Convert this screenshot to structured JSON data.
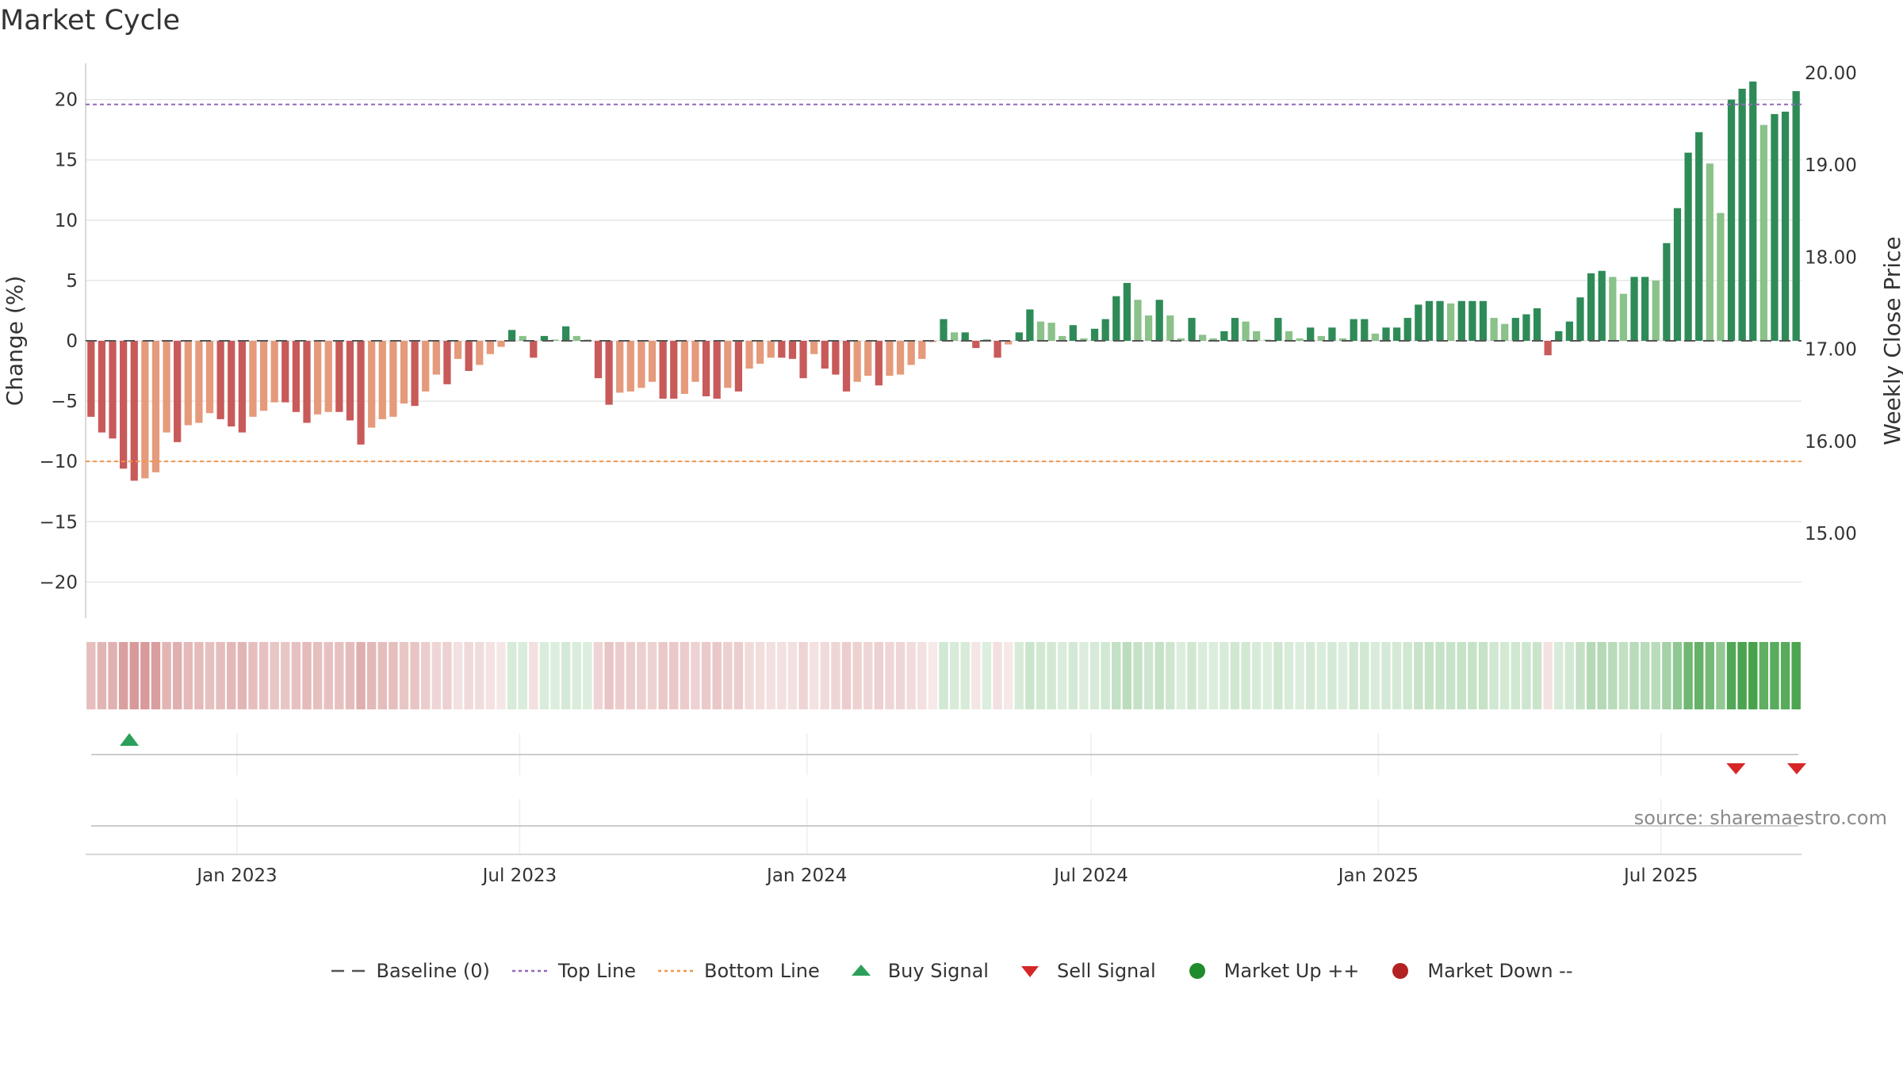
{
  "title": "Market Cycle",
  "source_text": "source: sharemaestro.com",
  "colors": {
    "dark_red": "#c85a5a",
    "light_red": "#e59a7b",
    "dark_green": "#2e8b57",
    "light_green": "#8ac28a",
    "top_line": "#9467bd",
    "bottom_line": "#f0964a",
    "baseline": "#555555",
    "buy": "#2ca05a",
    "sell": "#d62728",
    "market_up": "#1f8b2c",
    "market_down": "#b22222"
  },
  "legend": [
    {
      "label": "Baseline (0)",
      "icon": "dash-line-icon"
    },
    {
      "label": "Top Line",
      "icon": "dotted-purple-line-icon"
    },
    {
      "label": "Bottom Line",
      "icon": "dotted-orange-line-icon"
    },
    {
      "label": "Buy Signal",
      "icon": "triangle-up-icon"
    },
    {
      "label": "Sell Signal",
      "icon": "triangle-down-icon"
    },
    {
      "label": "Market Up ++",
      "icon": "green-dot-icon"
    },
    {
      "label": "Market Down --",
      "icon": "red-dot-icon"
    }
  ],
  "chart_data": {
    "type": "bar",
    "title": "Market Cycle",
    "ylabel": "Change (%)",
    "y2label": "Weekly Close Price",
    "ylim": [
      -23,
      23
    ],
    "yticks": [
      20,
      15,
      10,
      5,
      0,
      -5,
      -10,
      -15,
      -20
    ],
    "y2lim": [
      14.0,
      20.0
    ],
    "y2ticks": [
      "20.00",
      "19.00",
      "18.00",
      "17.00",
      "16.00",
      "15.00"
    ],
    "top_line": 19.6,
    "bottom_line": -10,
    "baseline": 0,
    "grid": true,
    "legend_position": "bottom",
    "x_start": "2022-09-26",
    "x_end": "2025-09-29",
    "x_ticks": [
      {
        "label": "Jan 2023",
        "date": "2023-01-01"
      },
      {
        "label": "Jul 2023",
        "date": "2023-07-01"
      },
      {
        "label": "Jan 2024",
        "date": "2024-01-01"
      },
      {
        "label": "Jul 2024",
        "date": "2024-07-01"
      },
      {
        "label": "Jan 2025",
        "date": "2025-01-01"
      },
      {
        "label": "Jul 2025",
        "date": "2025-07-01"
      }
    ],
    "weekly_change": [
      -6.3,
      -7.6,
      -8.1,
      -10.6,
      -11.6,
      -11.4,
      -10.9,
      -7.6,
      -8.4,
      -7.0,
      -6.8,
      -6.0,
      -6.5,
      -7.1,
      -7.6,
      -6.3,
      -5.8,
      -5.1,
      -5.1,
      -5.9,
      -6.8,
      -6.1,
      -5.9,
      -5.9,
      -6.6,
      -8.6,
      -7.2,
      -6.5,
      -6.3,
      -5.2,
      -5.4,
      -4.2,
      -2.8,
      -3.6,
      -1.5,
      -2.5,
      -2.0,
      -1.1,
      -0.5,
      0.9,
      0.4,
      -1.4,
      0.4,
      0.1,
      1.2,
      0.4,
      0.1,
      -3.1,
      -5.3,
      -4.3,
      -4.2,
      -3.9,
      -3.4,
      -4.8,
      -4.8,
      -4.4,
      -3.4,
      -4.6,
      -4.8,
      -3.9,
      -4.2,
      -2.3,
      -1.9,
      -1.4,
      -1.4,
      -1.5,
      -3.1,
      -1.1,
      -2.3,
      -2.8,
      -4.2,
      -3.4,
      -2.9,
      -3.7,
      -2.9,
      -2.8,
      -2.0,
      -1.5,
      -0.1,
      1.8,
      0.7,
      0.7,
      -0.6,
      0.1,
      -1.4,
      -0.3,
      0.7,
      2.6,
      1.6,
      1.5,
      0.4,
      1.3,
      0.2,
      1.0,
      1.8,
      3.7,
      4.8,
      3.4,
      2.1,
      3.4,
      2.1,
      0.2,
      1.9,
      0.5,
      0.2,
      0.8,
      1.9,
      1.6,
      0.8,
      0.1,
      1.9,
      0.8,
      0.2,
      1.1,
      0.4,
      1.1,
      0.2,
      1.8,
      1.8,
      0.6,
      1.1,
      1.1,
      1.9,
      3.0,
      3.3,
      3.3,
      3.1,
      3.3,
      3.3,
      3.3,
      1.9,
      1.4,
      1.9,
      2.2,
      2.7,
      -1.2,
      0.8,
      1.6,
      3.6,
      5.6,
      5.8,
      5.3,
      3.9,
      5.3,
      5.3,
      5.0,
      8.1,
      11.0,
      15.6,
      17.3,
      14.7,
      10.6,
      20.0,
      20.9,
      21.5,
      17.9,
      18.8,
      19.0,
      20.7
    ],
    "buy_signals": [
      "2022-10-24"
    ],
    "sell_signals": [
      "2025-08-18",
      "2025-09-29"
    ]
  }
}
